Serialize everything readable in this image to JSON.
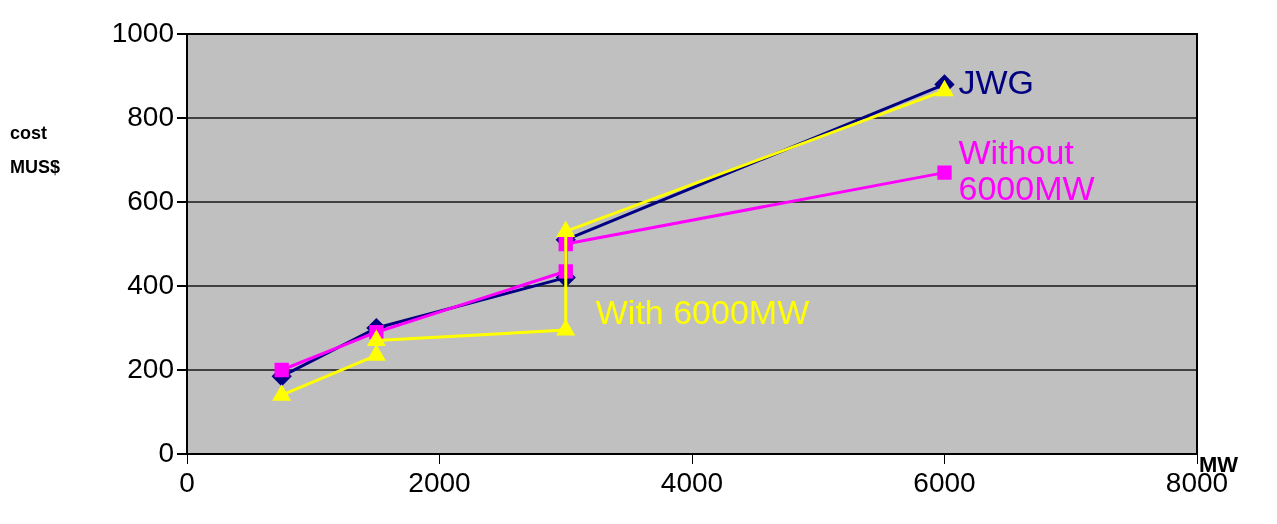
{
  "chart_data": {
    "type": "line",
    "xlabel": "MW",
    "ylabel": "cost MUS$",
    "xlim": [
      0,
      8000
    ],
    "xticks": [
      0,
      2000,
      4000,
      6000,
      8000
    ],
    "ylim": [
      0,
      1000
    ],
    "yticks": [
      0,
      200,
      400,
      600,
      800,
      1000
    ],
    "grid": "y",
    "legend": false,
    "series": [
      {
        "name": "JWG",
        "color": "#000080",
        "marker": "diamond",
        "x": [
          750,
          1500,
          3000,
          3000,
          6000
        ],
        "values": [
          185,
          300,
          420,
          510,
          880
        ]
      },
      {
        "name": "Without 6000MW",
        "color": "#ff00ff",
        "marker": "square",
        "x": [
          750,
          1500,
          3000,
          3000,
          6000
        ],
        "values": [
          200,
          290,
          435,
          500,
          670
        ]
      },
      {
        "name": "With 6000MW",
        "color": "#ffff00",
        "marker": "triangle",
        "x": [
          750,
          1500,
          1500,
          3000,
          3000,
          6000
        ],
        "values": [
          140,
          235,
          270,
          295,
          530,
          865
        ]
      }
    ]
  }
}
